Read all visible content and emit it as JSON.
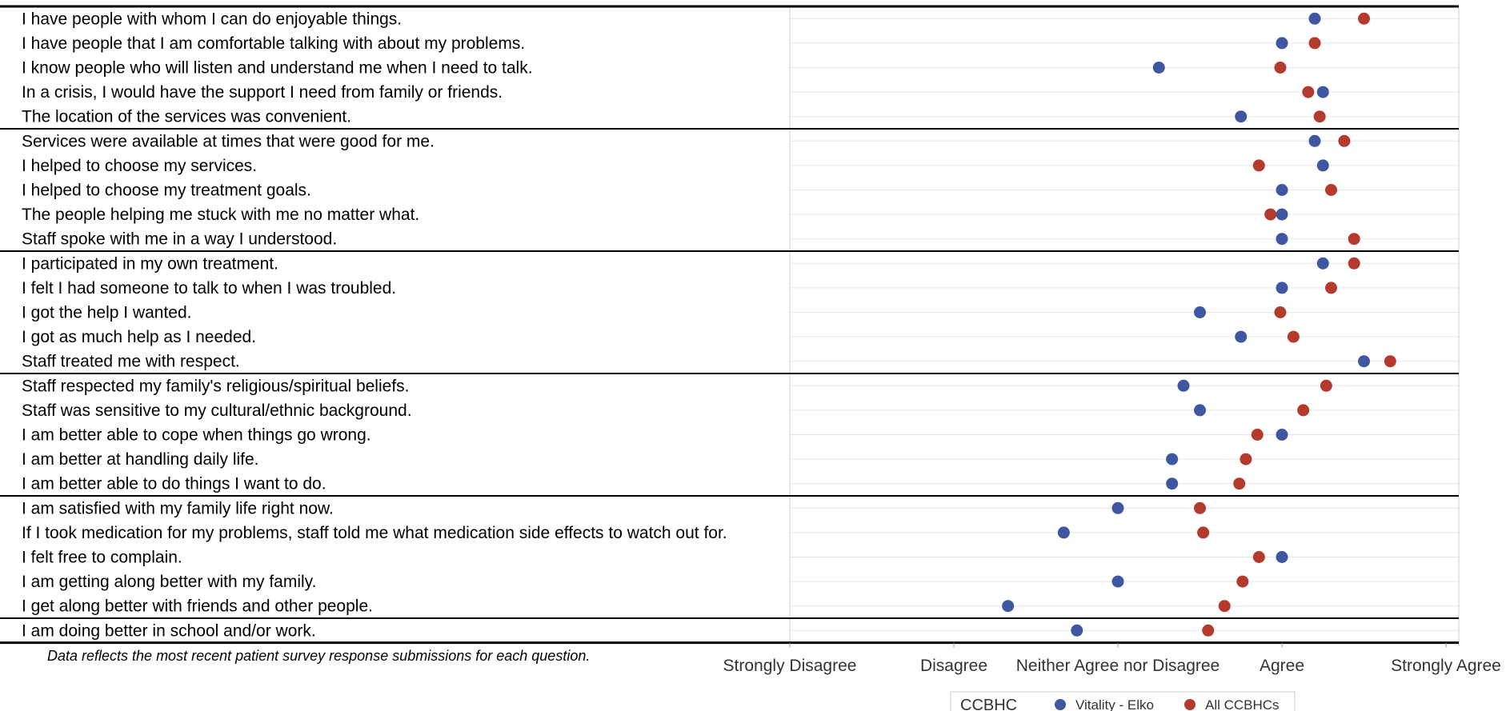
{
  "chart_data": {
    "type": "scatter",
    "title": "",
    "footnote": "Data reflects the most recent patient survey response submissions for each question.",
    "x_ticks": [
      "Strongly Disagree",
      "Disagree",
      "Neither Agree nor Disagree",
      "Agree",
      "Strongly Agree"
    ],
    "xlim": [
      1,
      5
    ],
    "grid": true,
    "legend_placement": "bottom-right",
    "legend": {
      "title": "CCBHC",
      "items": [
        {
          "label": "Vitality - Elko",
          "color": "#3f57a1"
        },
        {
          "label": "All CCBHCs",
          "color": "#b33a2c"
        }
      ]
    },
    "questions": [
      "I have people with whom I can do enjoyable things.",
      "I have people that I am comfortable talking with about my problems.",
      "I know people who will listen and understand me when I need to talk.",
      "In a crisis, I would have the support I need from family or friends.",
      "The location of the services was convenient.",
      "Services were available at times that were good for me.",
      "I helped to choose my services.",
      "I helped to choose my treatment goals.",
      "The people helping me stuck with me no matter what.",
      "Staff spoke with me in a way I understood.",
      "I participated in my own treatment.",
      "I felt I had someone to talk to when I was troubled.",
      "I got the help I wanted.",
      "I got as much help as I needed.",
      "Staff treated me with respect.",
      "Staff respected my family's religious/spiritual beliefs.",
      "Staff was sensitive to my cultural/ethnic background.",
      "I am better able to cope when things go wrong.",
      "I am better at handling daily life.",
      "I am better able to do things I want to do.",
      "I am satisfied with my family life right now.",
      "If I took medication for my problems, staff told me what medication side effects to watch out for.",
      "I felt free to complain.",
      "I am getting along better with my family.",
      "I get along better with friends and other people.",
      "I am doing better in school and/or work."
    ],
    "group_breaks_after": [
      4,
      9,
      14,
      19,
      24
    ],
    "series": [
      {
        "name": "Vitality - Elko",
        "color": "#3f57a1",
        "values": [
          4.2,
          4.0,
          3.25,
          4.25,
          3.75,
          4.2,
          4.25,
          4.0,
          4.0,
          4.0,
          4.25,
          4.0,
          3.5,
          3.75,
          4.5,
          3.4,
          3.5,
          4.0,
          3.33,
          3.33,
          3.0,
          2.67,
          4.0,
          3.0,
          2.33,
          2.75
        ]
      },
      {
        "name": "All CCBHCs",
        "color": "#b33a2c",
        "values": [
          4.5,
          4.2,
          3.99,
          4.16,
          4.23,
          4.38,
          3.86,
          4.3,
          3.93,
          4.44,
          4.44,
          4.3,
          3.99,
          4.07,
          4.66,
          4.27,
          4.13,
          3.85,
          3.78,
          3.74,
          3.5,
          3.52,
          3.86,
          3.76,
          3.65,
          3.55
        ]
      }
    ]
  }
}
